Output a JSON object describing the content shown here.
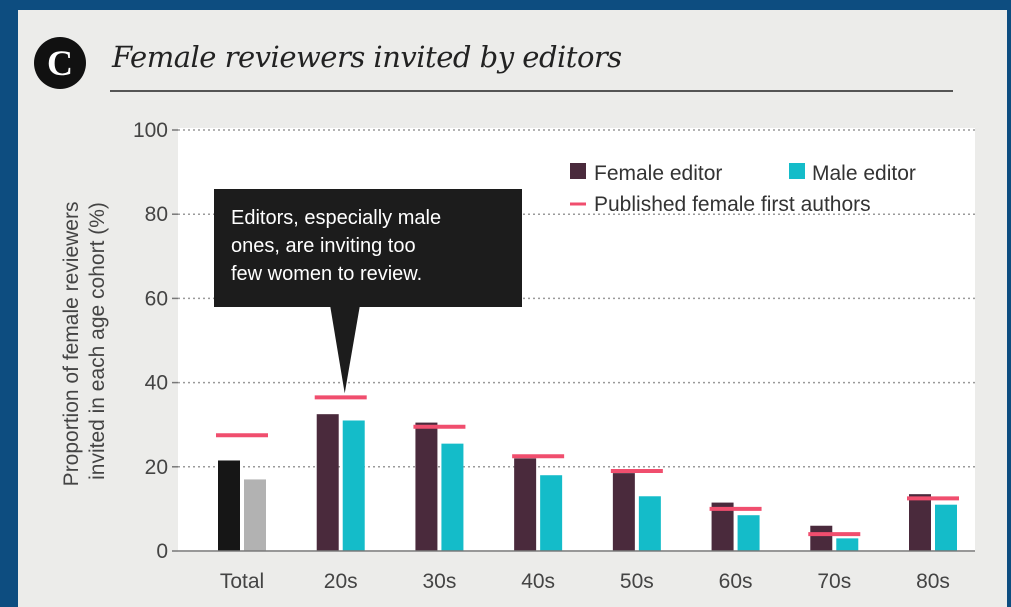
{
  "panel": {
    "letter": "C",
    "title": "Female reviewers invited by editors"
  },
  "colors": {
    "female_editor": "#4a2a3c",
    "male_editor": "#14bcc9",
    "published_line": "#f04e6e",
    "total_female": "#161616",
    "total_male": "#b2b2b2"
  },
  "chart_data": {
    "type": "bar",
    "ylabel": "Proportion of female reviewers invited in each age cohort (%)",
    "ylabel_lines": [
      "Proportion of female reviewers",
      "invited in each age cohort (%)"
    ],
    "ylim": [
      0,
      100
    ],
    "yticks": [
      "0",
      "20",
      "40",
      "60",
      "80",
      "100"
    ],
    "grid": true,
    "legend_position": "top-right",
    "categories": [
      "Total",
      "20s",
      "30s",
      "40s",
      "50s",
      "60s",
      "70s",
      "80s"
    ],
    "series": [
      {
        "name": "Female editor",
        "values": [
          21.5,
          32.5,
          30.5,
          22,
          18.5,
          11.5,
          6,
          13.5
        ]
      },
      {
        "name": "Male editor",
        "values": [
          17,
          31,
          25.5,
          18,
          13,
          8.5,
          3,
          11
        ]
      },
      {
        "name": "Published female first authors",
        "values": [
          27.5,
          36.5,
          29.5,
          22.5,
          19,
          10,
          4,
          12.5
        ]
      }
    ],
    "annotation": {
      "lines": [
        "Editors, especially male",
        "ones, are inviting too",
        "few women to review."
      ],
      "category": "20s"
    }
  }
}
